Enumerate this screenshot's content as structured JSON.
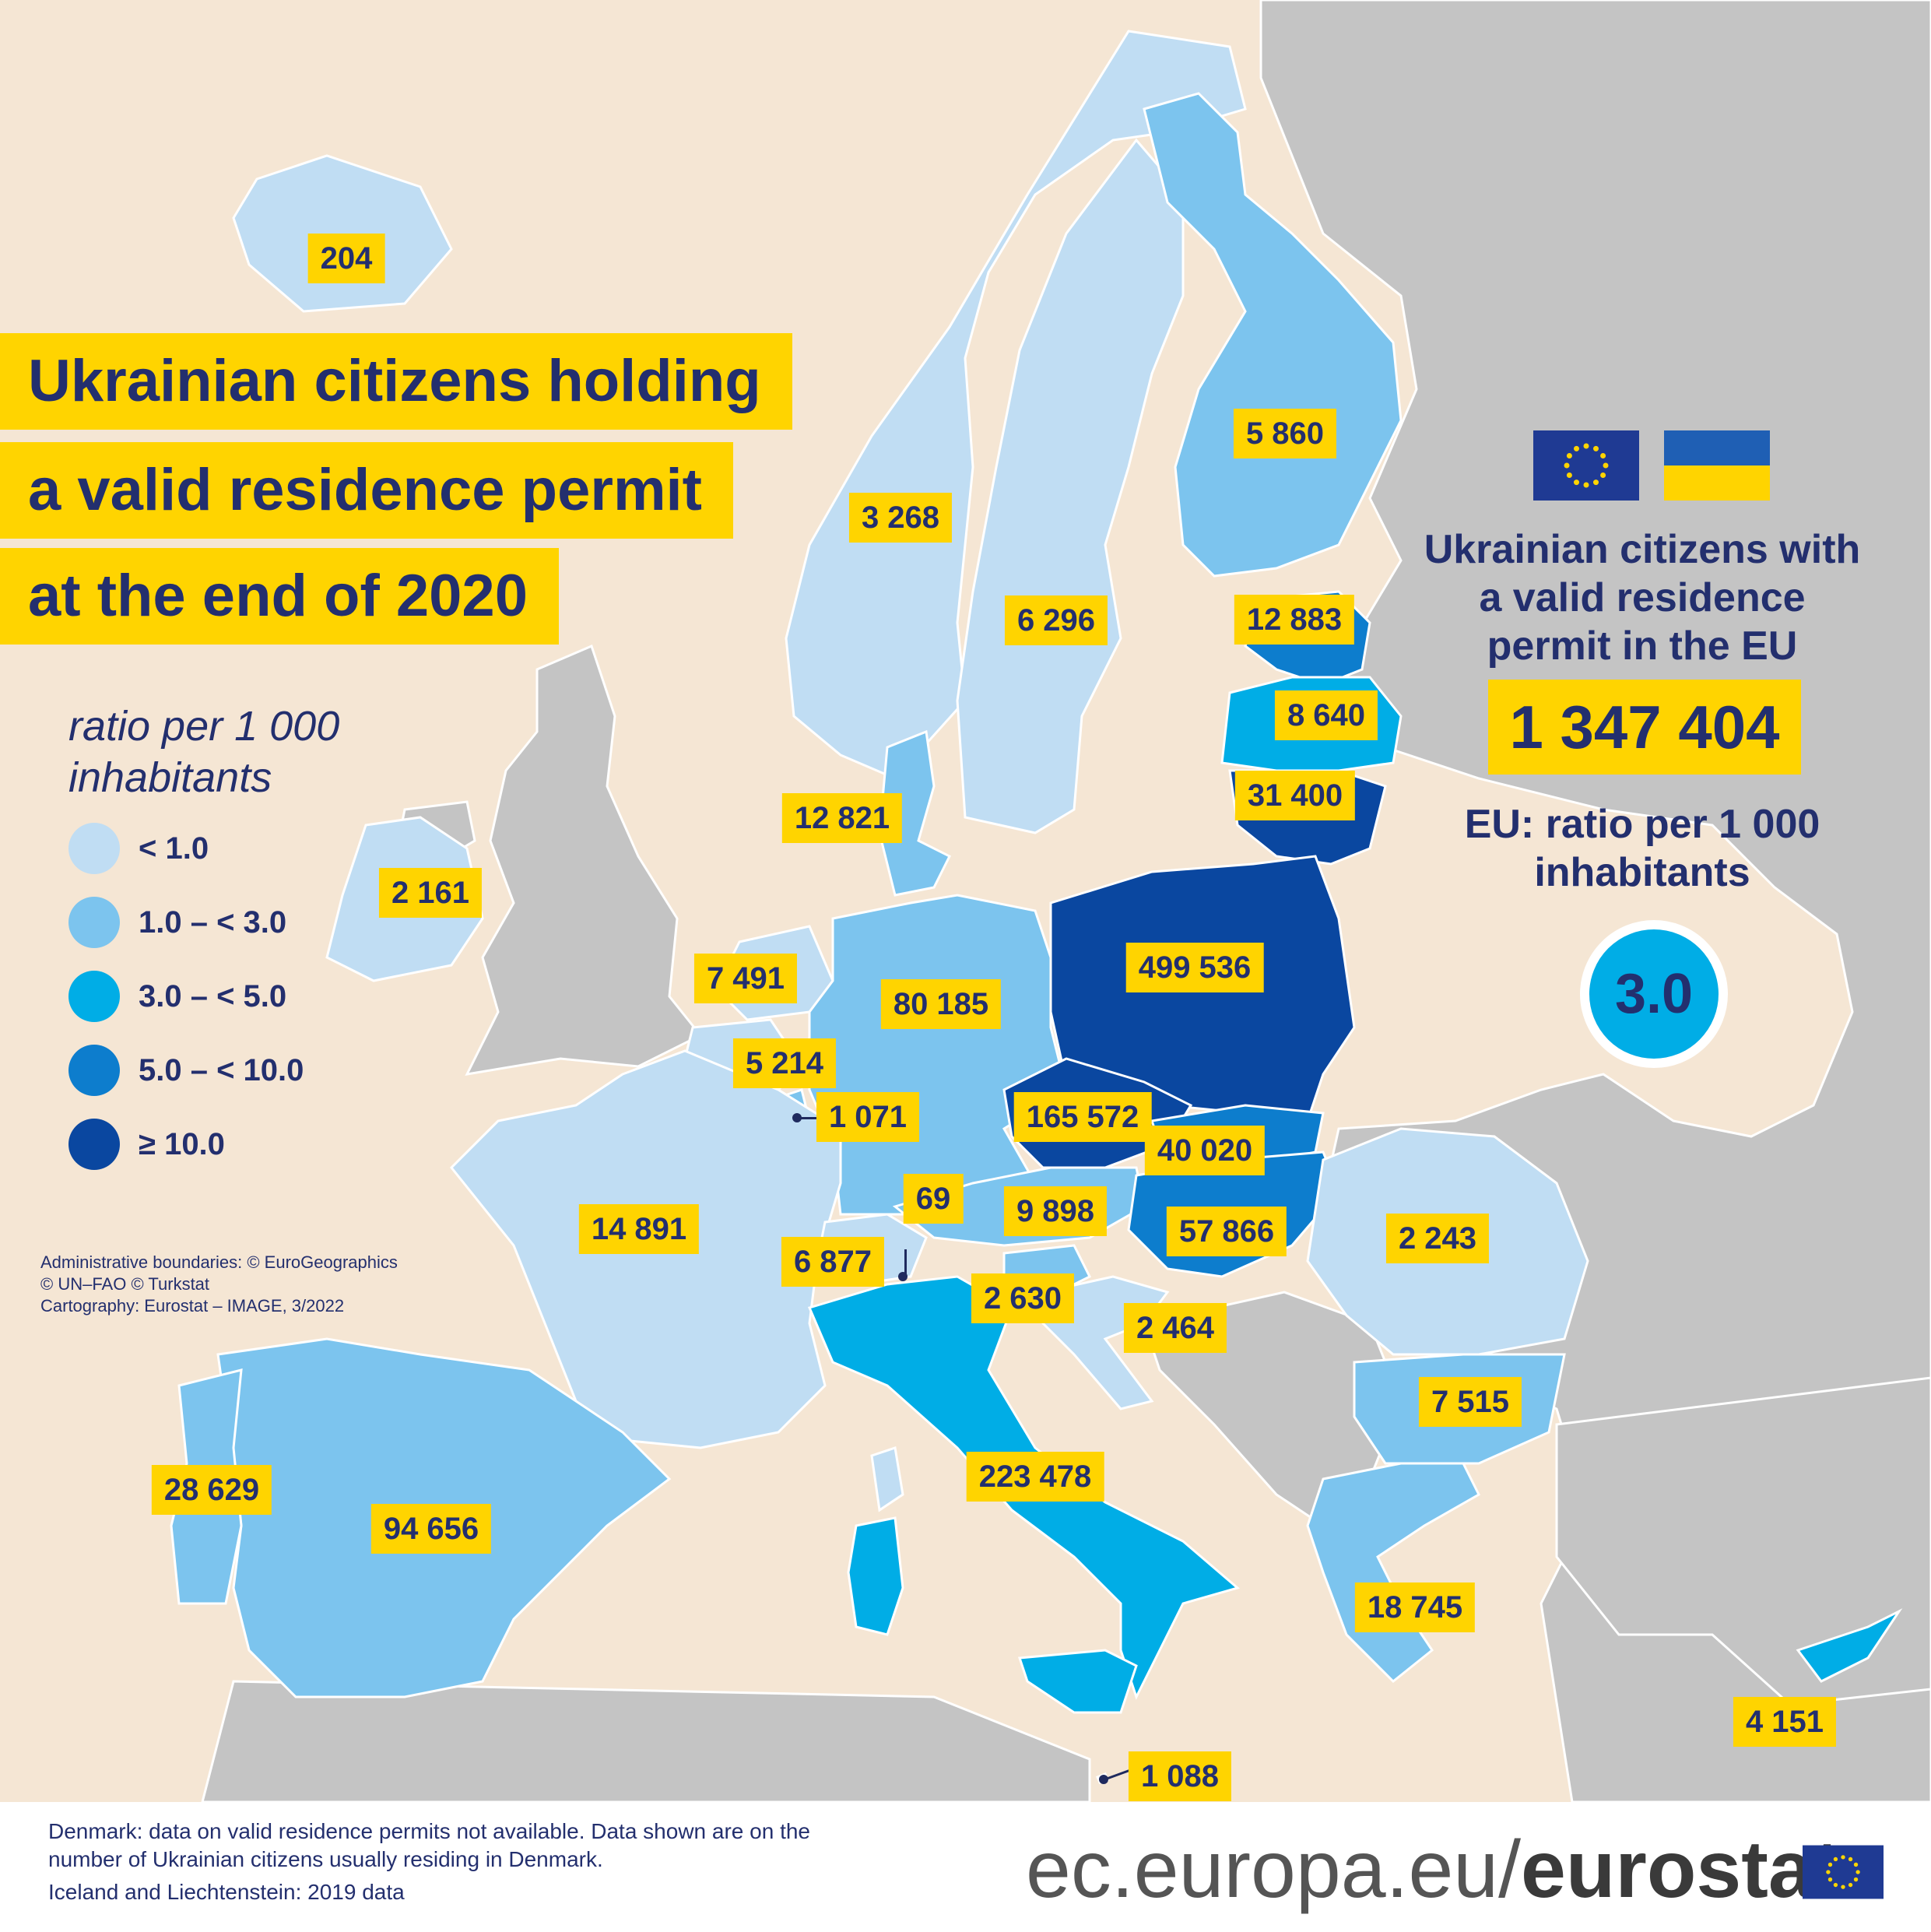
{
  "title": {
    "lines": [
      "Ukrainian citizens holding",
      "a valid residence permit",
      "at the end of 2020"
    ]
  },
  "legend": {
    "title": "ratio per 1 000 inhabitants",
    "classes": [
      {
        "label": "< 1.0",
        "color": "#c0ddf3"
      },
      {
        "label": "1.0 – < 3.0",
        "color": "#7cc4ee"
      },
      {
        "label": "3.0 – < 5.0",
        "color": "#00ade6"
      },
      {
        "label": "5.0 – < 10.0",
        "color": "#0d7dcd"
      },
      {
        "label": "≥ 10.0",
        "color": "#0a47a0"
      }
    ]
  },
  "credits": [
    "Administrative boundaries: © EuroGeographics",
    "© UN–FAO © Turkstat",
    "Cartography: Eurostat – IMAGE, 3/2022"
  ],
  "eu_summary": {
    "heading": "Ukrainian citizens with a valid residence permit in the EU",
    "total": "1 347 404",
    "ratio_label": "EU: ratio per 1 000 inhabitants",
    "ratio_value": "3.0"
  },
  "map_labels": [
    {
      "name": "iceland",
      "value": "204",
      "class": 1
    },
    {
      "name": "norway",
      "value": "3 268",
      "class": 1
    },
    {
      "name": "sweden",
      "value": "6 296",
      "class": 1
    },
    {
      "name": "finland",
      "value": "5 860",
      "class": 2
    },
    {
      "name": "estonia",
      "value": "12 883",
      "class": 4
    },
    {
      "name": "latvia",
      "value": "8 640",
      "class": 3
    },
    {
      "name": "lithuania",
      "value": "31 400",
      "class": 5
    },
    {
      "name": "denmark",
      "value": "12 821",
      "class": 2
    },
    {
      "name": "ireland",
      "value": "2 161",
      "class": 1
    },
    {
      "name": "netherlands",
      "value": "7 491",
      "class": 1
    },
    {
      "name": "germany",
      "value": "80 185",
      "class": 2
    },
    {
      "name": "poland",
      "value": "499 536",
      "class": 5
    },
    {
      "name": "belgium",
      "value": "5 214",
      "class": 1
    },
    {
      "name": "luxembourg",
      "value": "1 071",
      "class": 2
    },
    {
      "name": "czechia",
      "value": "165 572",
      "class": 5
    },
    {
      "name": "slovakia",
      "value": "40 020",
      "class": 4
    },
    {
      "name": "liechtenstein",
      "value": "69",
      "class": 2
    },
    {
      "name": "austria",
      "value": "9 898",
      "class": 2
    },
    {
      "name": "hungary",
      "value": "57 866",
      "class": 4
    },
    {
      "name": "romania",
      "value": "2 243",
      "class": 1
    },
    {
      "name": "france",
      "value": "14 891",
      "class": 1
    },
    {
      "name": "switzerland",
      "value": "6 877",
      "class": 1
    },
    {
      "name": "slovenia",
      "value": "2 630",
      "class": 2
    },
    {
      "name": "croatia",
      "value": "2 464",
      "class": 1
    },
    {
      "name": "bulgaria",
      "value": "7 515",
      "class": 2
    },
    {
      "name": "italy",
      "value": "223 478",
      "class": 3
    },
    {
      "name": "portugal",
      "value": "28 629",
      "class": 2
    },
    {
      "name": "spain",
      "value": "94 656",
      "class": 2
    },
    {
      "name": "greece",
      "value": "18 745",
      "class": 2
    },
    {
      "name": "cyprus",
      "value": "4 151",
      "class": 3
    },
    {
      "name": "malta",
      "value": "1 088",
      "class": 2
    }
  ],
  "footnotes": [
    "Denmark: data on valid residence permits not available. Data shown are on the number of Ukrainian citizens usually residing in Denmark.",
    "Iceland and Liechtenstein: 2019 data"
  ],
  "brand": {
    "prefix": "ec.europa.eu/",
    "bold": "eurostat"
  },
  "colors": {
    "title_bg": "#ffd400",
    "text": "#232f6e",
    "non_eu": "#c4c4c4",
    "sea": "#f5e6d4"
  }
}
